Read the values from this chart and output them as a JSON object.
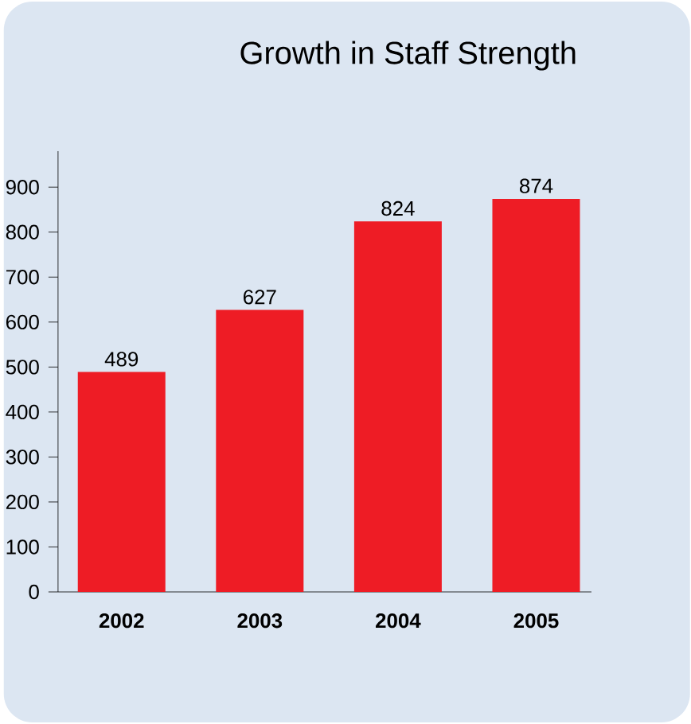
{
  "chart_data": {
    "type": "bar",
    "title": "Growth in Staff Strength",
    "categories": [
      "2002",
      "2003",
      "2004",
      "2005"
    ],
    "values": [
      489,
      627,
      824,
      874
    ],
    "color": "#ee1c25",
    "ylim": [
      0,
      980
    ],
    "yticks": [
      0,
      100,
      200,
      300,
      400,
      500,
      600,
      700,
      800,
      900
    ],
    "data_labels": true
  }
}
